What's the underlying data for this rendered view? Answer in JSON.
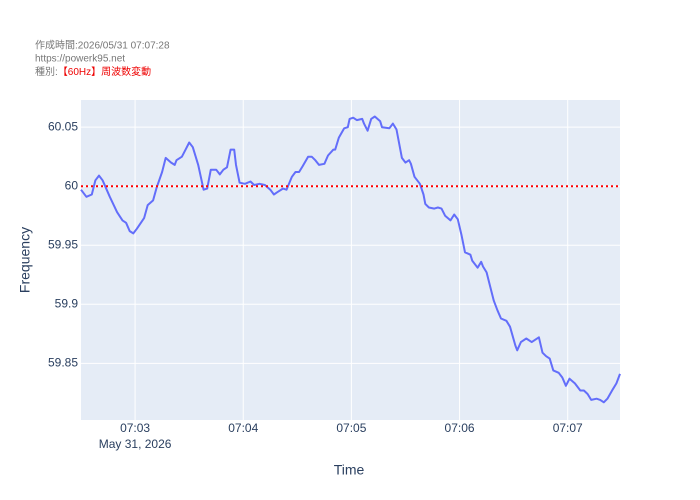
{
  "chart_data": {
    "type": "line",
    "title": "作成時間:2026/05/31 07:07:28",
    "subtitle": "https://powerk95.net",
    "kind_label": "種別:",
    "kind": "【60Hz】周波数変動",
    "x_label": "Time",
    "y_label": "Frequency",
    "x_date_label": "May 31, 2026",
    "x": [
      "2026-05-31 07:02:30",
      "2026-05-31 07:02:33",
      "2026-05-31 07:02:36",
      "2026-05-31 07:02:38",
      "2026-05-31 07:02:40",
      "2026-05-31 07:02:42",
      "2026-05-31 07:02:46",
      "2026-05-31 07:02:50",
      "2026-05-31 07:02:53",
      "2026-05-31 07:02:55",
      "2026-05-31 07:02:57",
      "2026-05-31 07:02:59",
      "2026-05-31 07:03:01",
      "2026-05-31 07:03:05",
      "2026-05-31 07:03:07",
      "2026-05-31 07:03:10",
      "2026-05-31 07:03:12",
      "2026-05-31 07:03:15",
      "2026-05-31 07:03:17",
      "2026-05-31 07:03:20",
      "2026-05-31 07:03:22",
      "2026-05-31 07:03:23",
      "2026-05-31 07:03:26",
      "2026-05-31 07:03:28",
      "2026-05-31 07:03:30",
      "2026-05-31 07:03:32",
      "2026-05-31 07:03:35",
      "2026-05-31 07:03:38",
      "2026-05-31 07:03:40",
      "2026-05-31 07:03:42",
      "2026-05-31 07:03:45",
      "2026-05-31 07:03:47",
      "2026-05-31 07:03:49",
      "2026-05-31 07:03:51",
      "2026-05-31 07:03:53",
      "2026-05-31 07:03:55",
      "2026-05-31 07:03:56",
      "2026-05-31 07:03:58",
      "2026-05-31 07:04:01",
      "2026-05-31 07:04:04",
      "2026-05-31 07:04:06",
      "2026-05-31 07:04:09",
      "2026-05-31 07:04:12",
      "2026-05-31 07:04:15",
      "2026-05-31 07:04:17",
      "2026-05-31 07:04:19",
      "2026-05-31 07:04:22",
      "2026-05-31 07:04:24",
      "2026-05-31 07:04:27",
      "2026-05-31 07:04:29",
      "2026-05-31 07:04:31",
      "2026-05-31 07:04:33",
      "2026-05-31 07:04:36",
      "2026-05-31 07:04:38",
      "2026-05-31 07:04:40",
      "2026-05-31 07:04:42",
      "2026-05-31 07:04:45",
      "2026-05-31 07:04:47",
      "2026-05-31 07:04:50",
      "2026-05-31 07:04:51",
      "2026-05-31 07:04:53",
      "2026-05-31 07:04:56",
      "2026-05-31 07:04:58",
      "2026-05-31 07:04:59",
      "2026-05-31 07:05:01",
      "2026-05-31 07:05:03",
      "2026-05-31 07:05:06",
      "2026-05-31 07:05:07",
      "2026-05-31 07:05:09",
      "2026-05-31 07:05:11",
      "2026-05-31 07:05:13",
      "2026-05-31 07:05:16",
      "2026-05-31 07:05:17",
      "2026-05-31 07:05:21",
      "2026-05-31 07:05:23",
      "2026-05-31 07:05:25",
      "2026-05-31 07:05:27",
      "2026-05-31 07:05:28",
      "2026-05-31 07:05:30",
      "2026-05-31 07:05:32",
      "2026-05-31 07:05:33",
      "2026-05-31 07:05:35",
      "2026-05-31 07:05:38",
      "2026-05-31 07:05:40",
      "2026-05-31 07:05:41",
      "2026-05-31 07:05:43",
      "2026-05-31 07:05:46",
      "2026-05-31 07:05:48",
      "2026-05-31 07:05:50",
      "2026-05-31 07:05:52",
      "2026-05-31 07:05:55",
      "2026-05-31 07:05:57",
      "2026-05-31 07:05:59",
      "2026-05-31 07:06:01",
      "2026-05-31 07:06:03",
      "2026-05-31 07:06:06",
      "2026-05-31 07:06:07",
      "2026-05-31 07:06:10",
      "2026-05-31 07:06:12",
      "2026-05-31 07:06:13",
      "2026-05-31 07:06:15",
      "2026-05-31 07:06:17",
      "2026-05-31 07:06:19",
      "2026-05-31 07:06:21",
      "2026-05-31 07:06:23",
      "2026-05-31 07:06:26",
      "2026-05-31 07:06:28",
      "2026-05-31 07:06:31",
      "2026-05-31 07:06:32",
      "2026-05-31 07:06:34",
      "2026-05-31 07:06:37",
      "2026-05-31 07:06:40",
      "2026-05-31 07:06:42",
      "2026-05-31 07:06:44",
      "2026-05-31 07:06:46",
      "2026-05-31 07:06:48",
      "2026-05-31 07:06:50",
      "2026-05-31 07:06:52",
      "2026-05-31 07:06:55",
      "2026-05-31 07:06:57",
      "2026-05-31 07:06:59",
      "2026-05-31 07:07:01",
      "2026-05-31 07:07:04",
      "2026-05-31 07:07:07",
      "2026-05-31 07:07:09",
      "2026-05-31 07:07:11",
      "2026-05-31 07:07:13",
      "2026-05-31 07:07:16",
      "2026-05-31 07:07:18",
      "2026-05-31 07:07:20",
      "2026-05-31 07:07:22",
      "2026-05-31 07:07:25",
      "2026-05-31 07:07:27",
      "2026-05-31 07:07:29"
    ],
    "series": [
      {
        "name": "Frequency",
        "color": "#636efa",
        "values": [
          59.997,
          59.991,
          59.993,
          60.005,
          60.009,
          60.005,
          59.991,
          59.978,
          59.971,
          59.969,
          59.962,
          59.96,
          59.964,
          59.973,
          59.984,
          59.988,
          59.999,
          60.012,
          60.024,
          60.02,
          60.018,
          60.022,
          60.025,
          60.031,
          60.037,
          60.033,
          60.018,
          59.997,
          59.998,
          60.014,
          60.014,
          60.01,
          60.014,
          60.016,
          60.031,
          60.031,
          60.018,
          60.003,
          60.002,
          60.004,
          60.001,
          60.002,
          60.001,
          59.997,
          59.993,
          59.995,
          59.998,
          59.997,
          60.008,
          60.012,
          60.012,
          60.017,
          60.025,
          60.025,
          60.022,
          60.018,
          60.019,
          60.026,
          60.031,
          60.031,
          60.041,
          60.049,
          60.05,
          60.057,
          60.058,
          60.056,
          60.057,
          60.053,
          60.047,
          60.057,
          60.059,
          60.055,
          60.05,
          60.049,
          60.053,
          60.048,
          60.032,
          60.024,
          60.02,
          60.022,
          60.019,
          60.008,
          60.002,
          59.993,
          59.985,
          59.982,
          59.981,
          59.982,
          59.981,
          59.975,
          59.971,
          59.976,
          59.972,
          59.959,
          59.944,
          59.942,
          59.937,
          59.931,
          59.936,
          59.932,
          59.927,
          59.915,
          59.903,
          59.895,
          59.888,
          59.886,
          59.881,
          59.865,
          59.861,
          59.868,
          59.871,
          59.868,
          59.87,
          59.872,
          59.859,
          59.856,
          59.854,
          59.844,
          59.842,
          59.838,
          59.831,
          59.837,
          59.833,
          59.827,
          59.827,
          59.824,
          59.819,
          59.82,
          59.819,
          59.817,
          59.82,
          59.828,
          59.833,
          59.841
        ]
      }
    ],
    "reference_line": {
      "value": 60,
      "color": "#ff0000"
    },
    "xlim": [
      "2026-05-31 07:02:30",
      "2026-05-31 07:07:29"
    ],
    "xticks": [
      {
        "value": "2026-05-31 07:03:00",
        "label": "07:03"
      },
      {
        "value": "2026-05-31 07:04:00",
        "label": "07:04"
      },
      {
        "value": "2026-05-31 07:05:00",
        "label": "07:05"
      },
      {
        "value": "2026-05-31 07:06:00",
        "label": "07:06"
      },
      {
        "value": "2026-05-31 07:07:00",
        "label": "07:07"
      }
    ],
    "ylim": [
      59.802,
      60.073
    ],
    "yticks": [
      59.85,
      59.9,
      59.95,
      60,
      60.05
    ],
    "grid": true
  }
}
